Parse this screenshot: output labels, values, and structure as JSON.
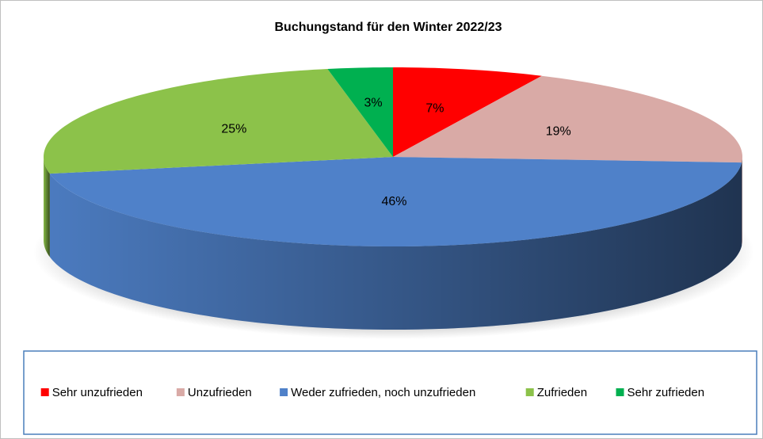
{
  "chart_data": {
    "type": "pie",
    "title": "Buchungstand für den Winter 2022/23",
    "categories": [
      "Sehr unzufrieden",
      "Unzufrieden",
      "Weder zufrieden, noch unzufrieden",
      "Zufrieden",
      "Sehr zufrieden"
    ],
    "values": [
      7,
      19,
      46,
      25,
      3
    ],
    "value_labels": [
      "7%",
      "19%",
      "46%",
      "25%",
      "3%"
    ],
    "colors": [
      "#ff0000",
      "#d9aaa6",
      "#4f81c9",
      "#8cc24a",
      "#00b050"
    ],
    "legend": "bottom"
  }
}
